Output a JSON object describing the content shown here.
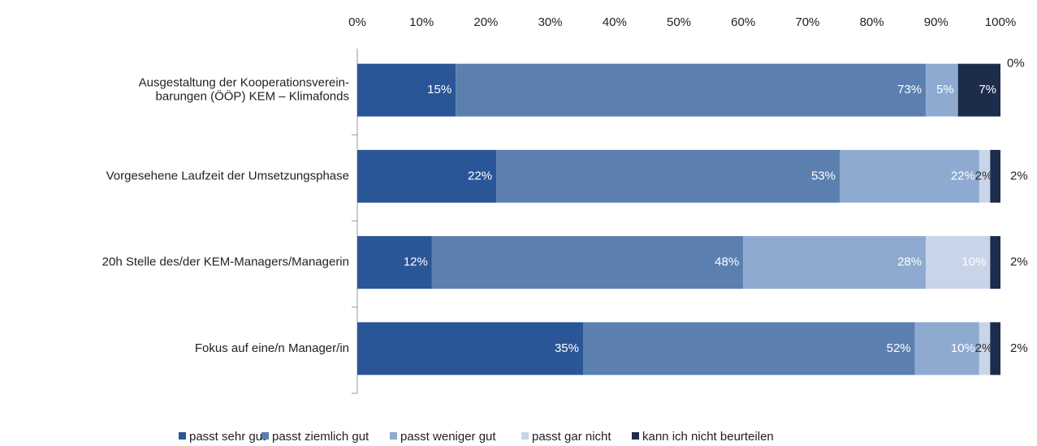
{
  "chart_data": {
    "type": "stacked_bar_horizontal",
    "categories": [
      "Ausgestaltung der Kooperationsverein-\nbarungen (ÖÖP) KEM  – Klimafonds",
      "Vorgesehene Laufzeit der Umsetzungsphase",
      "20h Stelle des/der KEM-Managers/Managerin",
      "Fokus auf eine/n Manager/in"
    ],
    "series": [
      {
        "name": "passt sehr gut",
        "color": "#2a5597",
        "values": [
          15.3,
          21.6,
          11.6,
          35.1
        ],
        "value_labels": [
          "15%",
          "22%",
          "12%",
          "35%"
        ]
      },
      {
        "name": "passt ziemlich gut",
        "color": "#5b80b0",
        "values": [
          73.1,
          53.4,
          48.4,
          51.6
        ],
        "value_labels": [
          "73%",
          "53%",
          "48%",
          "52%"
        ]
      },
      {
        "name": "passt weniger gut",
        "color": "#8eaad0",
        "values": [
          5.0,
          21.7,
          28.4,
          10.0
        ],
        "value_labels": [
          "5%",
          "22%",
          "28%",
          "10%"
        ]
      },
      {
        "name": "passt gar nicht",
        "color": "#c8d5e8",
        "values": [
          0,
          1.7,
          10.0,
          1.7
        ],
        "value_labels": [
          "0%",
          "2%",
          "10%",
          "2%"
        ]
      },
      {
        "name": "kann ich nicht beurteilen",
        "color": "#1c2c4a",
        "values": [
          6.6,
          1.6,
          1.6,
          1.6
        ],
        "value_labels": [
          "7%",
          "2%",
          "2%",
          "2%"
        ]
      }
    ],
    "xlim": [
      0,
      100
    ],
    "xticks": [
      {
        "value": 0,
        "label": "0%"
      },
      {
        "value": 10,
        "label": "10%"
      },
      {
        "value": 20,
        "label": "20%"
      },
      {
        "value": 30,
        "label": "30%"
      },
      {
        "value": 40,
        "label": "40%"
      },
      {
        "value": 50,
        "label": "50%"
      },
      {
        "value": 60,
        "label": "60%"
      },
      {
        "value": 70,
        "label": "70%"
      },
      {
        "value": 80,
        "label": "80%"
      },
      {
        "value": 90,
        "label": "90%"
      },
      {
        "value": 100,
        "label": "100%"
      }
    ],
    "legend": "bottom"
  }
}
